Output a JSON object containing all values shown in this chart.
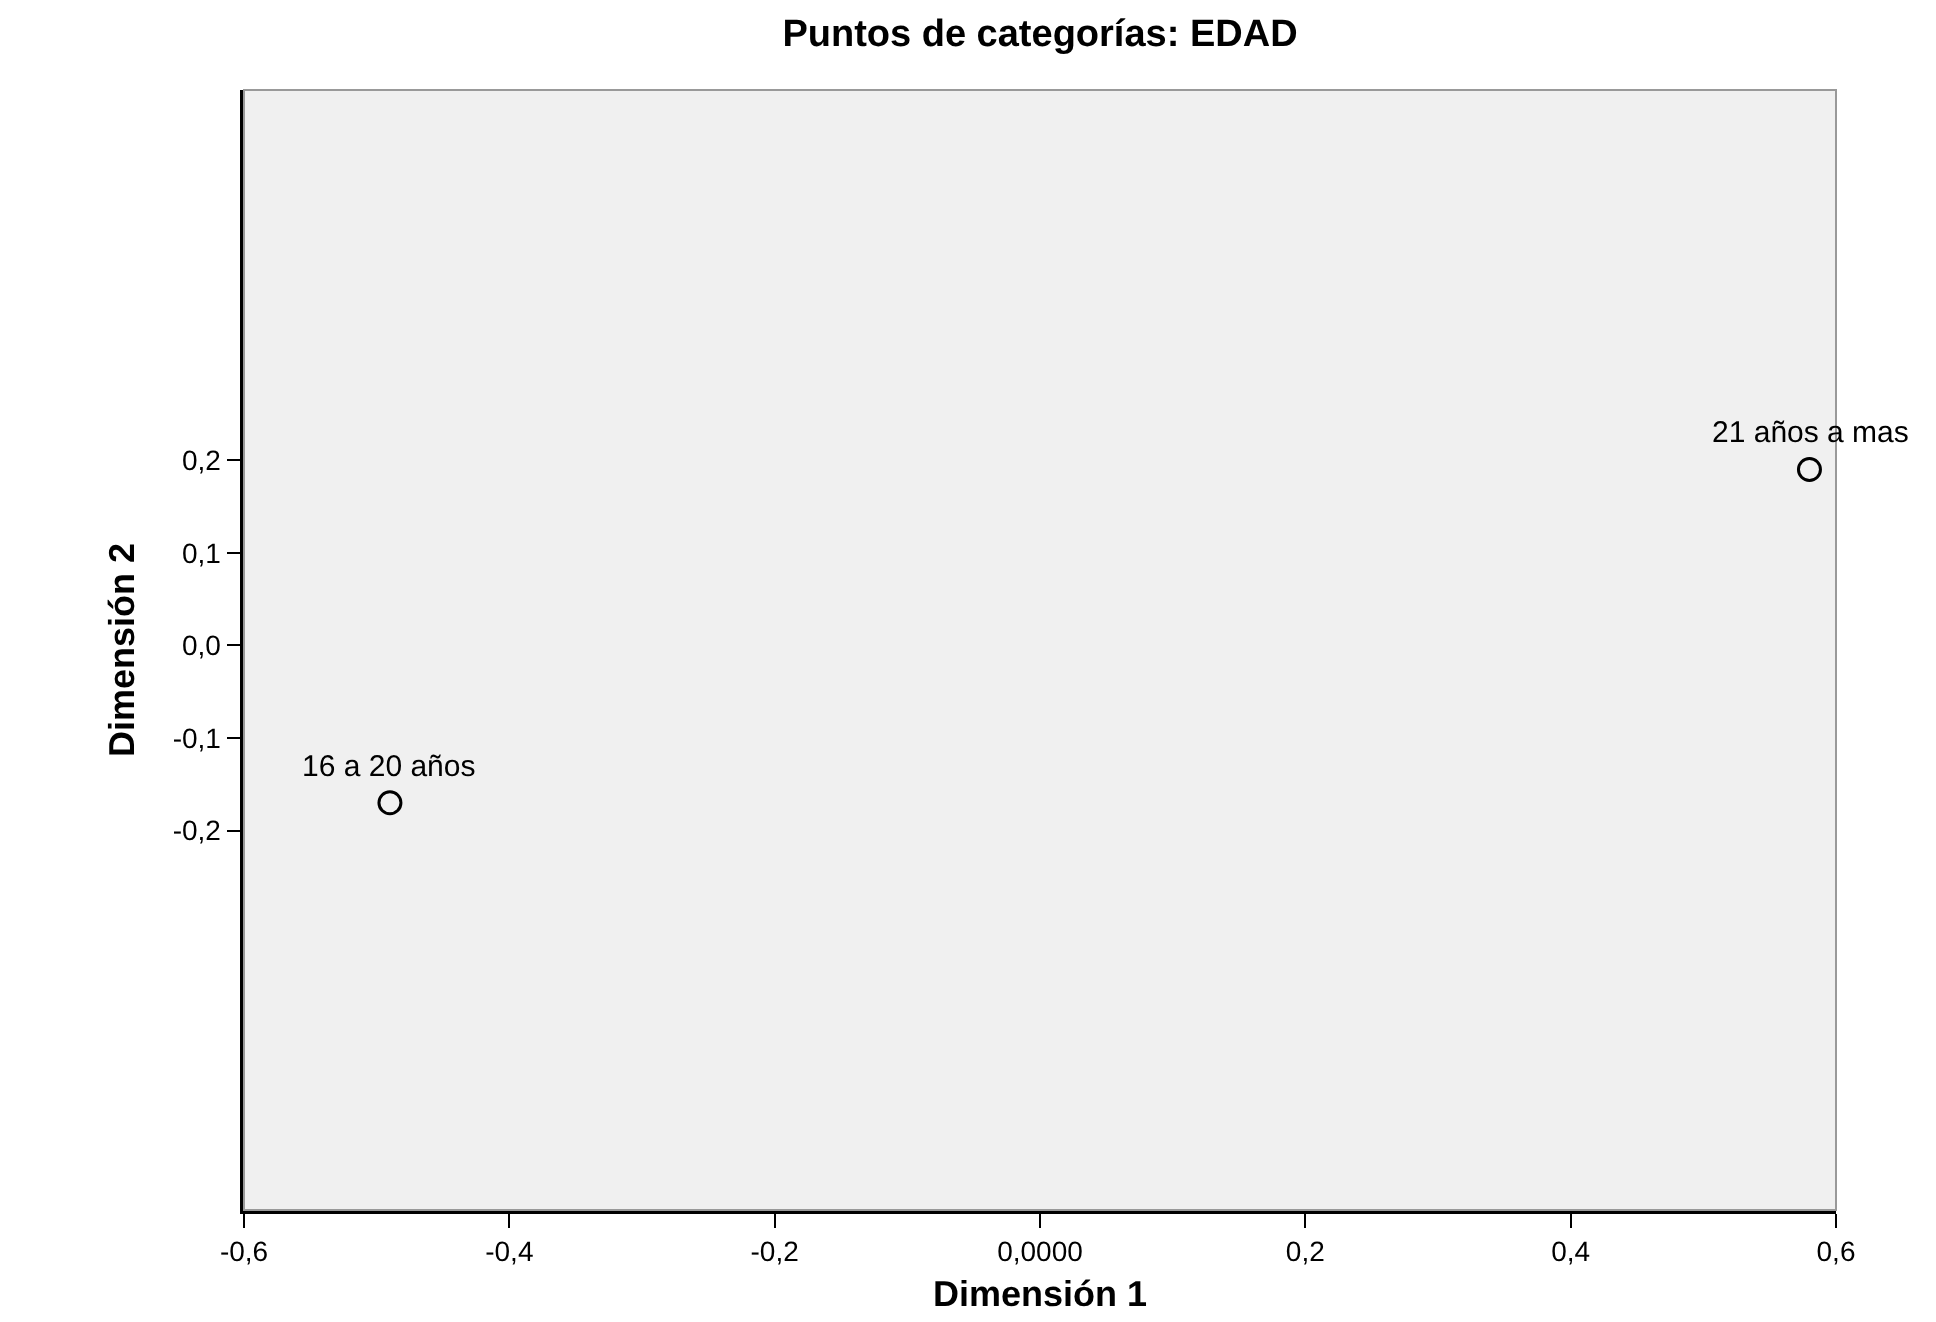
{
  "chart_data": {
    "type": "scatter",
    "title": "Puntos de categorías: EDAD",
    "xlabel": "Dimensión 1",
    "ylabel": "Dimensión 2",
    "x": [
      -0.49,
      0.58
    ],
    "series": [
      {
        "color": "#000000",
        "values": [
          -0.17,
          0.19
        ]
      }
    ],
    "marker": "circle",
    "grid": false,
    "xlim": [
      -0.6,
      0.6
    ],
    "ylim": [
      -0.61,
      0.6
    ],
    "xticks": [
      {
        "value": -0.6,
        "label": "-0,6"
      },
      {
        "value": -0.4,
        "label": "-0,4"
      },
      {
        "value": -0.2,
        "label": "-0,2"
      },
      {
        "value": 0,
        "label": "0,0000"
      },
      {
        "value": 0.2,
        "label": "0,2"
      },
      {
        "value": 0.4,
        "label": "0,4"
      },
      {
        "value": 0.6,
        "label": "0,6"
      }
    ],
    "yticks": [
      {
        "value": 0.2,
        "label": "0,2"
      },
      {
        "value": 0.1,
        "label": "0,1"
      },
      {
        "value": 0,
        "label": "0,0"
      },
      {
        "value": -0.1,
        "label": "-0,1"
      },
      {
        "value": -0.2,
        "label": "-0,2"
      }
    ],
    "annotations": [
      {
        "text": "16 a 20 años",
        "x": -0.49,
        "y": -0.17
      },
      {
        "text": "21 años a mas",
        "x": 0.58,
        "y": 0.19
      }
    ]
  }
}
